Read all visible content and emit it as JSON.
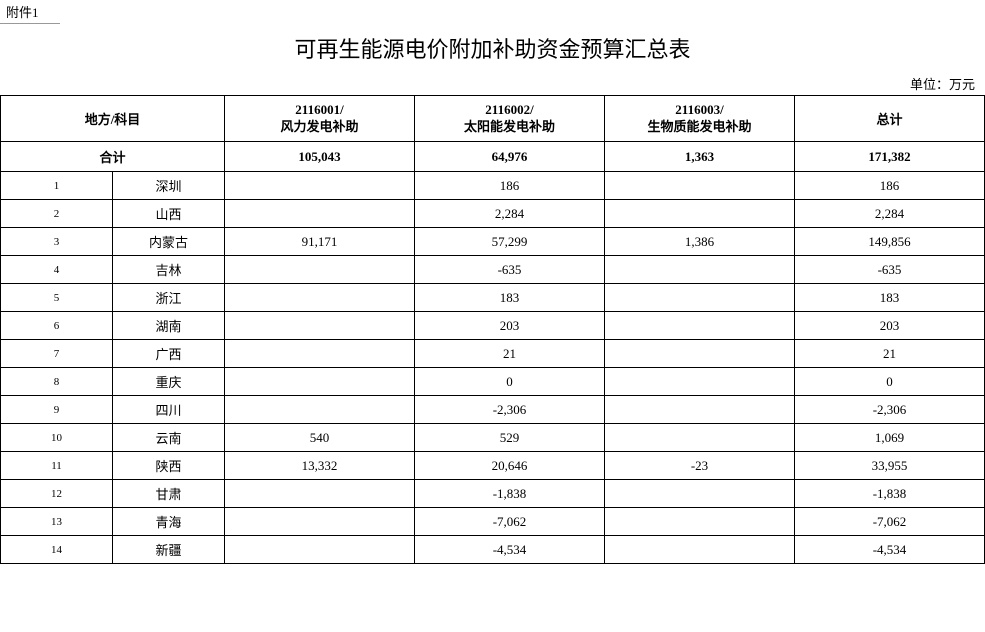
{
  "attachment_label": "附件1",
  "title": "可再生能源电价附加补助资金预算汇总表",
  "unit_label": "单位：万元",
  "table": {
    "header": {
      "region_subject": "地方/科目",
      "col1_code": "2116001/",
      "col1_name": "风力发电补助",
      "col2_code": "2116002/",
      "col2_name": "太阳能发电补助",
      "col3_code": "2116003/",
      "col3_name": "生物质能发电补助",
      "total": "总计"
    },
    "sum_row": {
      "label": "合计",
      "col1": "105,043",
      "col2": "64,976",
      "col3": "1,363",
      "total": "171,382"
    },
    "rows": [
      {
        "idx": "1",
        "region": "深圳",
        "col1": "",
        "col2": "186",
        "col3": "",
        "total": "186"
      },
      {
        "idx": "2",
        "region": "山西",
        "col1": "",
        "col2": "2,284",
        "col3": "",
        "total": "2,284"
      },
      {
        "idx": "3",
        "region": "内蒙古",
        "col1": "91,171",
        "col2": "57,299",
        "col3": "1,386",
        "total": "149,856"
      },
      {
        "idx": "4",
        "region": "吉林",
        "col1": "",
        "col2": "-635",
        "col3": "",
        "total": "-635"
      },
      {
        "idx": "5",
        "region": "浙江",
        "col1": "",
        "col2": "183",
        "col3": "",
        "total": "183"
      },
      {
        "idx": "6",
        "region": "湖南",
        "col1": "",
        "col2": "203",
        "col3": "",
        "total": "203"
      },
      {
        "idx": "7",
        "region": "广西",
        "col1": "",
        "col2": "21",
        "col3": "",
        "total": "21"
      },
      {
        "idx": "8",
        "region": "重庆",
        "col1": "",
        "col2": "0",
        "col3": "",
        "total": "0"
      },
      {
        "idx": "9",
        "region": "四川",
        "col1": "",
        "col2": "-2,306",
        "col3": "",
        "total": "-2,306"
      },
      {
        "idx": "10",
        "region": "云南",
        "col1": "540",
        "col2": "529",
        "col3": "",
        "total": "1,069"
      },
      {
        "idx": "11",
        "region": "陕西",
        "col1": "13,332",
        "col2": "20,646",
        "col3": "-23",
        "total": "33,955"
      },
      {
        "idx": "12",
        "region": "甘肃",
        "col1": "",
        "col2": "-1,838",
        "col3": "",
        "total": "-1,838"
      },
      {
        "idx": "13",
        "region": "青海",
        "col1": "",
        "col2": "-7,062",
        "col3": "",
        "total": "-7,062"
      },
      {
        "idx": "14",
        "region": "新疆",
        "col1": "",
        "col2": "-4,534",
        "col3": "",
        "total": "-4,534"
      }
    ]
  }
}
